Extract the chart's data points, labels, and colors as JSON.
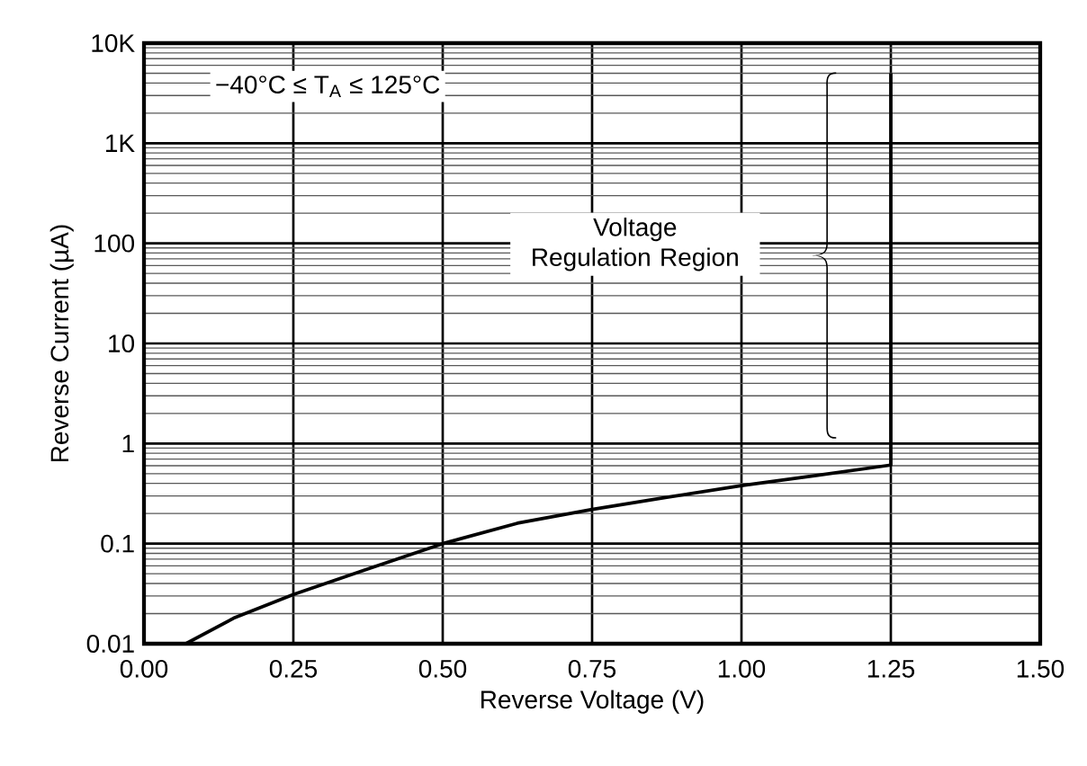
{
  "chart_data": {
    "type": "line",
    "xlabel": "Reverse Voltage (V)",
    "ylabel": "Reverse Current (µA)",
    "log": "y",
    "grid": true,
    "marker": "none",
    "line_style": "solid",
    "xlim": [
      0,
      1.5
    ],
    "ylim": [
      0.01,
      10000
    ],
    "xticks": [
      {
        "value": 0,
        "label": "0.00"
      },
      {
        "value": 0.25,
        "label": "0.25"
      },
      {
        "value": 0.5,
        "label": "0.50"
      },
      {
        "value": 0.75,
        "label": "0.75"
      },
      {
        "value": 1,
        "label": "1.00"
      },
      {
        "value": 1.25,
        "label": "1.25"
      },
      {
        "value": 1.5,
        "label": "1.50"
      }
    ],
    "yticks": [
      0.01,
      0.1,
      1,
      10,
      100,
      {
        "value": 1000,
        "label": "1K"
      },
      {
        "value": 10000,
        "label": "10K"
      }
    ],
    "series": [
      {
        "color": "#000000",
        "x": [
          0.07,
          0.15,
          0.25,
          0.375,
          0.5,
          0.625,
          0.75,
          0.875,
          1.0,
          1.125,
          1.25,
          1.25
        ],
        "values": [
          0.01,
          0.018,
          0.031,
          0.056,
          0.1,
          0.16,
          0.22,
          0.29,
          0.38,
          0.48,
          0.61,
          5000
        ]
      }
    ],
    "annotations": [
      "−40°C ≤ T$_{A}$ ≤ 125°C",
      "Voltage Regulation Region"
    ]
  }
}
